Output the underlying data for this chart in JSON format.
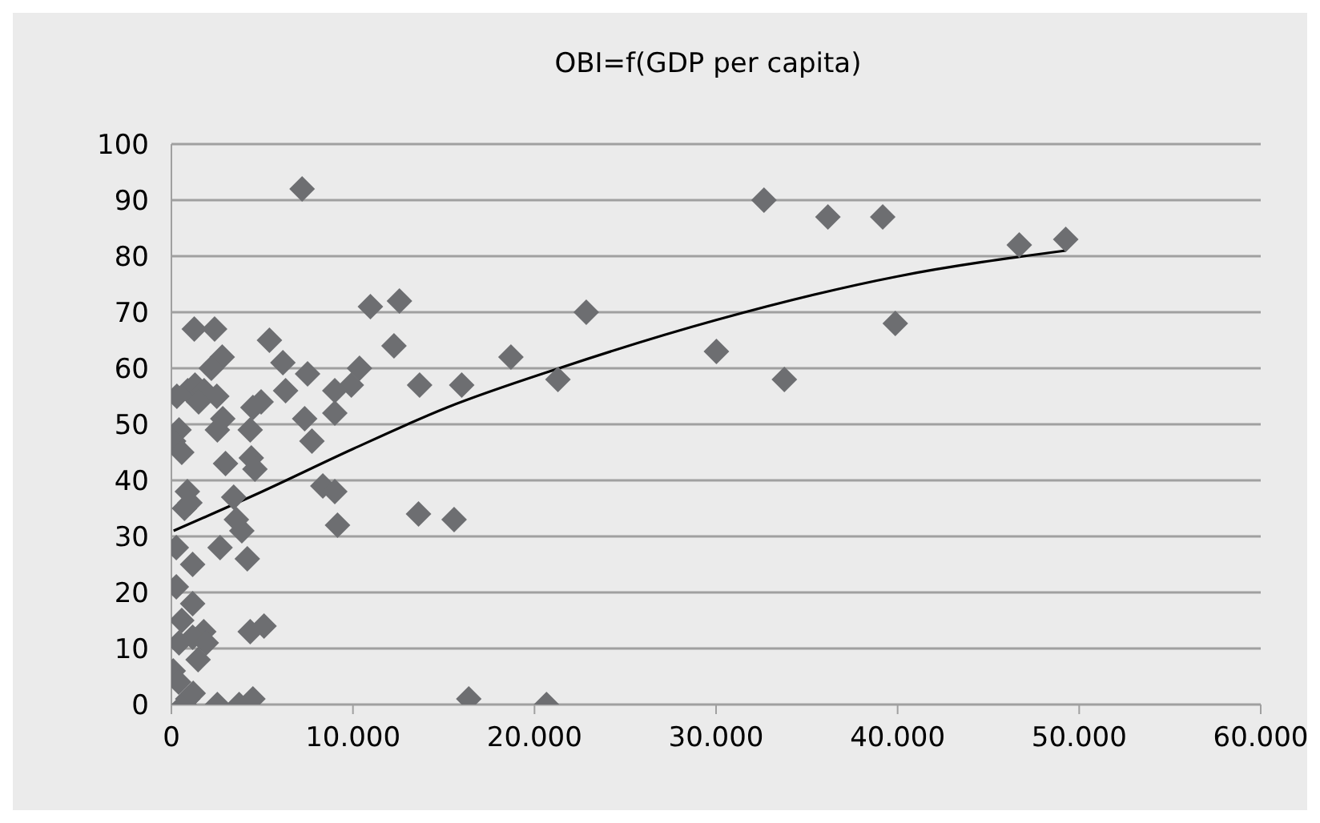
{
  "chart_data": {
    "type": "scatter",
    "title": "OBI=f(GDP per capita)",
    "xlim": [
      0,
      60000
    ],
    "xticks": [
      0,
      {
        "value": 10000,
        "label": "10.000"
      },
      {
        "value": 20000,
        "label": "20.000"
      },
      {
        "value": 30000,
        "label": "30.000"
      },
      {
        "value": 40000,
        "label": "40.000"
      },
      {
        "value": 50000,
        "label": "50.000"
      },
      {
        "value": 60000,
        "label": "60.000"
      }
    ],
    "ylim": [
      0,
      100
    ],
    "yticks": [
      0,
      10,
      20,
      30,
      40,
      50,
      60,
      70,
      80,
      90,
      100
    ],
    "grid": "y",
    "series": [
      {
        "color": "#6d6e71",
        "marker": "diamond",
        "x": [
          32640,
          36160,
          39180,
          46700,
          49260,
          39870,
          30020,
          33760,
          7200,
          10960,
          12560,
          22850,
          12260,
          18700,
          21290,
          13670,
          15990,
          10360,
          9910,
          9000,
          7500,
          6140,
          6290,
          5400,
          9000,
          7340,
          7740,
          8340,
          9000,
          9150,
          13610,
          15570,
          16380,
          20660,
          5100,
          1260,
          2380,
          2800,
          2200,
          300,
          900,
          1300,
          1800,
          2500,
          1500,
          4940,
          4490,
          2830,
          2530,
          4340,
          420,
          120,
          570,
          2980,
          4400,
          4600,
          880,
          1020,
          720,
          3430,
          3580,
          3880,
          270,
          2680,
          4180,
          1170,
          270,
          1170,
          570,
          1780,
          1170,
          1920,
          420,
          1470,
          4340,
          100,
          400,
          900,
          700,
          1200,
          2530,
          3730,
          4490
        ],
        "values": [
          90,
          87,
          87,
          82,
          83,
          68,
          63,
          58,
          92,
          71,
          72,
          70,
          64,
          62,
          58,
          57,
          57,
          60,
          57,
          56,
          59,
          61,
          56,
          65,
          52,
          51,
          47,
          39,
          38,
          32,
          34,
          33,
          1,
          0,
          14,
          67,
          67,
          62,
          60,
          55,
          56,
          57,
          56,
          55,
          54,
          54,
          53,
          51,
          49,
          49,
          49,
          47,
          45,
          43,
          44,
          42,
          38,
          36,
          35,
          37,
          33,
          31,
          28,
          28,
          26,
          25,
          21,
          18,
          15,
          13,
          12,
          11,
          11,
          8,
          13,
          6,
          4,
          1,
          0,
          2,
          0,
          0,
          1
        ]
      },
      {
        "type": "line",
        "color": "#000000",
        "x": [
          120,
          5000,
          10000,
          15180,
          21350,
          30000,
          40000,
          49260
        ],
        "values": [
          31,
          38,
          45.6,
          53,
          60,
          68.6,
          76.4,
          81
        ]
      }
    ]
  }
}
